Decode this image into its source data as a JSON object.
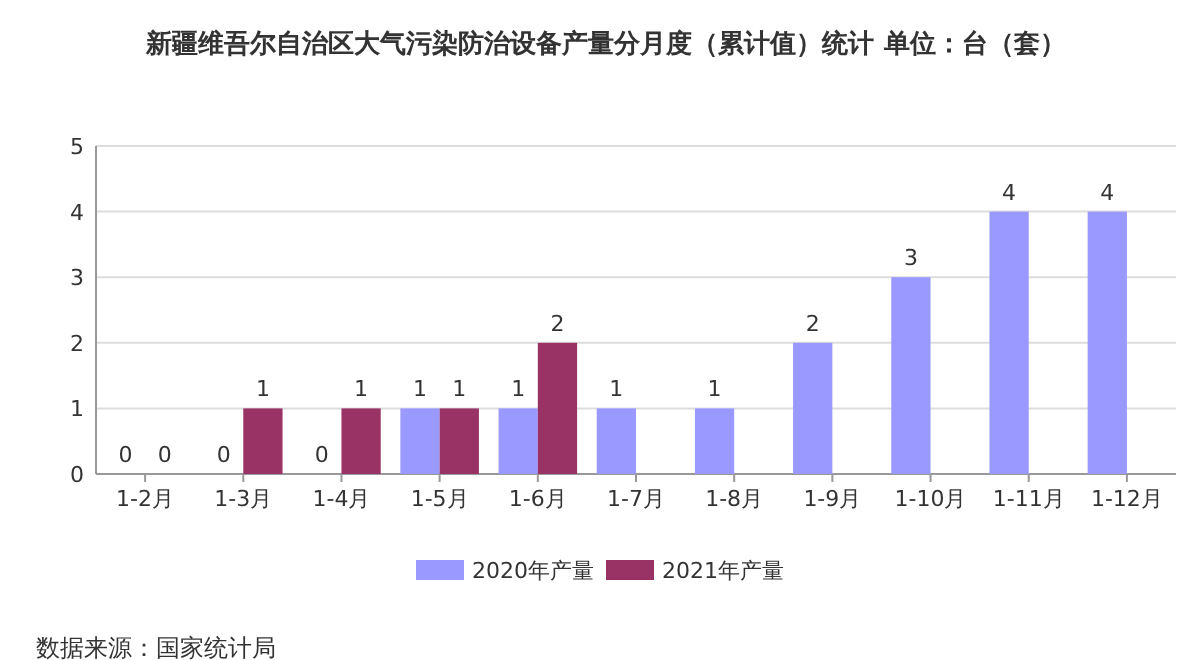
{
  "chart_data": {
    "type": "bar",
    "title": "新疆维吾尔自治区大气污染防治设备产量分月度（累计值）统计 单位：台（套）",
    "categories": [
      "1-2月",
      "1-3月",
      "1-4月",
      "1-5月",
      "1-6月",
      "1-7月",
      "1-8月",
      "1-9月",
      "1-10月",
      "1-11月",
      "1-12月"
    ],
    "series": [
      {
        "name": "2020年产量",
        "color": "#9999ff",
        "values": [
          0,
          0,
          0,
          1,
          1,
          1,
          1,
          2,
          3,
          4,
          4
        ]
      },
      {
        "name": "2021年产量",
        "color": "#993366",
        "values": [
          0,
          1,
          1,
          1,
          2,
          null,
          null,
          null,
          null,
          null,
          null
        ]
      }
    ],
    "ylim": [
      0,
      5
    ],
    "yticks": [
      0,
      1,
      2,
      3,
      4,
      5
    ],
    "grid": "y",
    "legend": "bottom",
    "data_labels": true,
    "annotations": [
      "数据来源：国家统计局"
    ]
  }
}
